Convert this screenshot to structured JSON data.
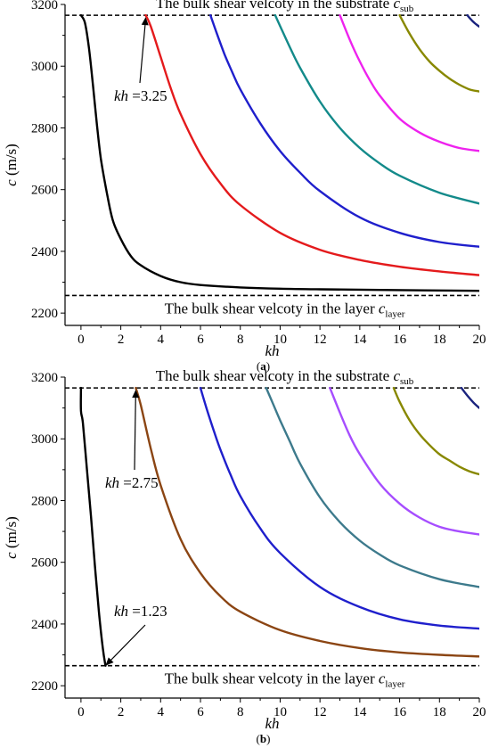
{
  "chart_data": [
    {
      "panel": "a",
      "type": "line",
      "caption": "(a)",
      "xlabel": "kh",
      "ylabel": "c (m/s)",
      "xlim": [
        -0.8,
        20
      ],
      "ylim": [
        2160,
        3200
      ],
      "xticks": [
        0,
        2,
        4,
        6,
        8,
        10,
        12,
        14,
        16,
        18,
        20
      ],
      "yticks": [
        2200,
        2400,
        2600,
        2800,
        3000,
        3200
      ],
      "reference_lines": [
        {
          "y": 3165,
          "label_main": "The bulk shear velcoty in the substrate ",
          "label_sym": "c",
          "label_sub": "sub"
        },
        {
          "y": 2257,
          "label_main": "The bulk shear velcoty in the layer ",
          "label_sym": "c",
          "label_sub": "layer"
        }
      ],
      "annotations": [
        {
          "text_sym": "kh",
          "text_rest": " =3.25",
          "x": 3.25,
          "y": 3165
        }
      ],
      "series": [
        {
          "color": "#000000",
          "x": [
            0.0,
            0.2,
            0.4,
            0.6,
            0.8,
            1.0,
            1.3,
            1.6,
            2.0,
            2.5,
            3.0,
            4.0,
            5.0,
            6.0,
            8.0,
            10.0,
            12.0,
            15.0,
            20.0
          ],
          "y": [
            3165,
            3140,
            3060,
            2940,
            2810,
            2700,
            2590,
            2500,
            2440,
            2385,
            2355,
            2320,
            2300,
            2291,
            2283,
            2279,
            2277,
            2275,
            2272
          ]
        },
        {
          "color": "#e41a1c",
          "x": [
            3.25,
            3.5,
            4.0,
            4.5,
            5.0,
            6.0,
            7.0,
            8.0,
            10.0,
            12.0,
            14.0,
            16.0,
            18.0,
            20.0
          ],
          "y": [
            3165,
            3130,
            3030,
            2930,
            2845,
            2715,
            2620,
            2550,
            2460,
            2405,
            2372,
            2350,
            2335,
            2323
          ]
        },
        {
          "color": "#1f1fcc",
          "x": [
            6.5,
            6.8,
            7.2,
            7.6,
            8.0,
            9.0,
            10.0,
            11.0,
            12.0,
            14.0,
            16.0,
            18.0,
            20.0
          ],
          "y": [
            3165,
            3110,
            3040,
            2980,
            2925,
            2815,
            2725,
            2655,
            2595,
            2510,
            2460,
            2430,
            2415
          ]
        },
        {
          "color": "#138a8a",
          "x": [
            9.75,
            10.0,
            10.5,
            11.0,
            12.0,
            13.0,
            14.0,
            15.0,
            16.0,
            18.0,
            20.0
          ],
          "y": [
            3165,
            3130,
            3060,
            2995,
            2885,
            2800,
            2735,
            2685,
            2645,
            2590,
            2555
          ]
        },
        {
          "color": "#ee22ee",
          "x": [
            13.0,
            13.5,
            14.0,
            14.5,
            15.0,
            16.0,
            17.0,
            18.0,
            19.0,
            20.0
          ],
          "y": [
            3165,
            3085,
            3015,
            2955,
            2905,
            2830,
            2785,
            2755,
            2735,
            2725
          ]
        },
        {
          "color": "#888800",
          "x": [
            16.0,
            16.5,
            17.0,
            17.5,
            18.0,
            18.5,
            19.0,
            19.5,
            20.0
          ],
          "y": [
            3165,
            3105,
            3055,
            3015,
            2985,
            2960,
            2940,
            2925,
            2918
          ]
        },
        {
          "color": "#1a237e",
          "x": [
            19.4,
            19.6,
            19.8,
            20.0
          ],
          "y": [
            3165,
            3150,
            3138,
            3128
          ]
        }
      ]
    },
    {
      "panel": "b",
      "type": "line",
      "caption": "(b)",
      "xlabel": "kh",
      "ylabel": "c (m/s)",
      "xlim": [
        -0.8,
        20
      ],
      "ylim": [
        2160,
        3200
      ],
      "xticks": [
        0,
        2,
        4,
        6,
        8,
        10,
        12,
        14,
        16,
        18,
        20
      ],
      "yticks": [
        2200,
        2400,
        2600,
        2800,
        3000,
        3200
      ],
      "reference_lines": [
        {
          "y": 3165,
          "label_main": "The bulk shear velcoty in the substrate ",
          "label_sym": "c",
          "label_sub": "sub"
        },
        {
          "y": 2265,
          "label_main": "The bulk shear velcoty in the layer ",
          "label_sym": "c",
          "label_sub": "layer"
        }
      ],
      "annotations": [
        {
          "text_sym": "kh",
          "text_rest": " =2.75",
          "x": 2.75,
          "y": 3165
        },
        {
          "text_sym": "kh",
          "text_rest": " =1.23",
          "x": 1.23,
          "y": 2265
        }
      ],
      "series": [
        {
          "color": "#000000",
          "x": [
            0.0,
            0.0,
            0.1,
            0.3,
            0.5,
            0.7,
            0.9,
            1.1,
            1.23
          ],
          "y": [
            3165,
            3090,
            3050,
            2900,
            2750,
            2590,
            2440,
            2320,
            2265
          ]
        },
        {
          "color": "#8b4513",
          "x": [
            2.75,
            3.0,
            3.5,
            4.0,
            5.0,
            6.0,
            7.0,
            8.0,
            10.0,
            12.0,
            14.0,
            16.0,
            18.0,
            20.0
          ],
          "y": [
            3165,
            3110,
            2970,
            2850,
            2675,
            2565,
            2490,
            2440,
            2380,
            2345,
            2322,
            2308,
            2300,
            2295
          ]
        },
        {
          "color": "#1f1fcc",
          "x": [
            6.0,
            6.3,
            6.7,
            7.0,
            7.5,
            8.0,
            9.0,
            10.0,
            12.0,
            14.0,
            16.0,
            18.0,
            20.0
          ],
          "y": [
            3165,
            3100,
            3020,
            2965,
            2885,
            2815,
            2710,
            2630,
            2520,
            2455,
            2415,
            2395,
            2385
          ]
        },
        {
          "color": "#3d7a8c",
          "x": [
            9.3,
            9.6,
            10.0,
            10.5,
            11.0,
            12.0,
            13.0,
            14.0,
            15.0,
            16.0,
            18.0,
            20.0
          ],
          "y": [
            3165,
            3120,
            3060,
            2990,
            2920,
            2810,
            2730,
            2670,
            2625,
            2590,
            2545,
            2520
          ]
        },
        {
          "color": "#a64dff",
          "x": [
            12.5,
            13.0,
            13.5,
            14.0,
            15.0,
            16.0,
            17.0,
            18.0,
            19.0,
            20.0
          ],
          "y": [
            3165,
            3085,
            3010,
            2950,
            2855,
            2790,
            2745,
            2715,
            2700,
            2690
          ]
        },
        {
          "color": "#888800",
          "x": [
            15.7,
            16.0,
            16.5,
            17.0,
            17.5,
            18.0,
            18.5,
            19.0,
            19.5,
            20.0
          ],
          "y": [
            3165,
            3120,
            3060,
            3015,
            2980,
            2950,
            2930,
            2910,
            2895,
            2885
          ]
        },
        {
          "color": "#1a237e",
          "x": [
            19.1,
            19.4,
            19.7,
            20.0
          ],
          "y": [
            3165,
            3140,
            3118,
            3100
          ]
        }
      ]
    }
  ]
}
